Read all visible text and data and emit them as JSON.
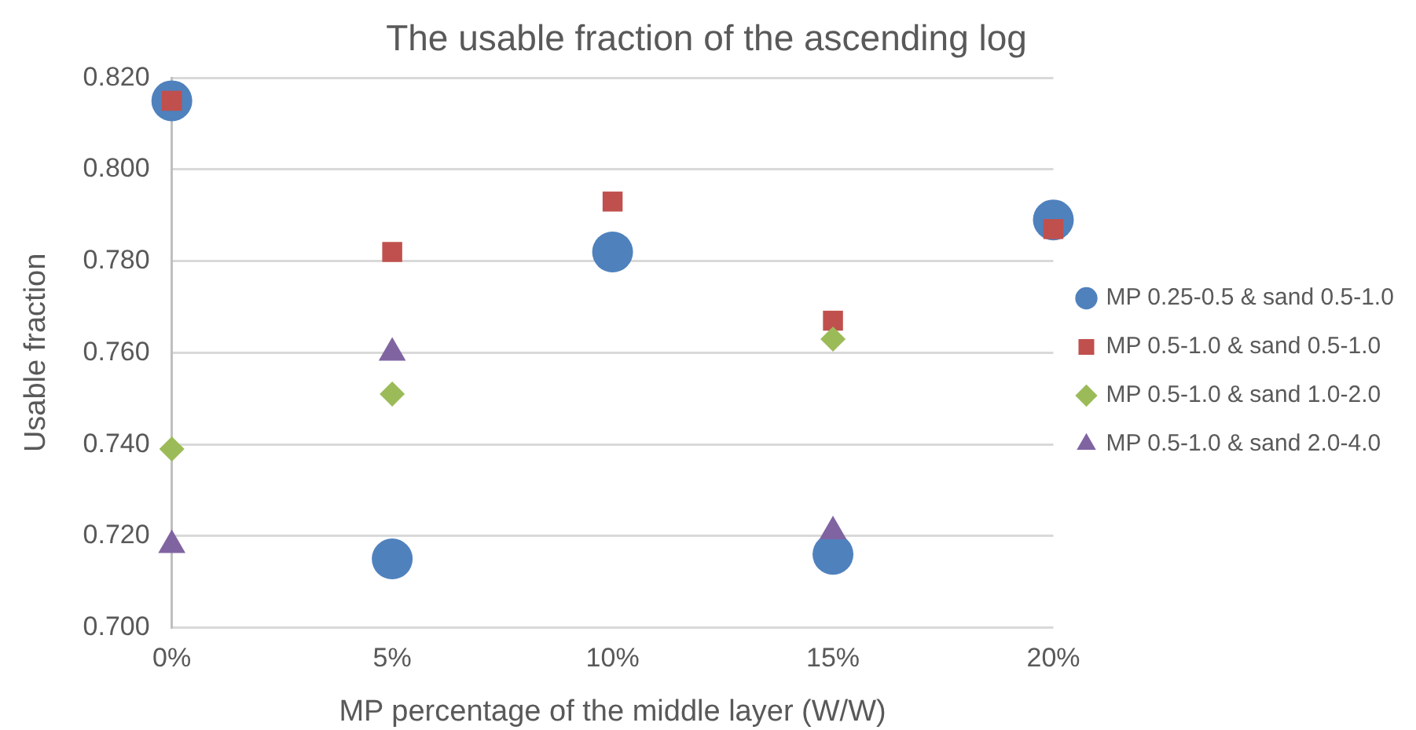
{
  "chart_data": {
    "type": "scatter",
    "title": "The usable fraction of the ascending log",
    "xlabel": "MP percentage of the middle layer (W/W)",
    "ylabel": "Usable fraction",
    "categories": [
      "0%",
      "5%",
      "10%",
      "15%",
      "20%"
    ],
    "series": [
      {
        "name": "MP 0.25-0.5 & sand 0.5-1.0",
        "color": "#4f81bd",
        "marker": "circle",
        "values": [
          0.815,
          0.715,
          0.782,
          0.716,
          0.789
        ]
      },
      {
        "name": "MP 0.5-1.0 & sand 0.5-1.0",
        "color": "#c0504d",
        "marker": "square",
        "values": [
          0.815,
          0.782,
          0.793,
          0.767,
          0.787
        ]
      },
      {
        "name": "MP 0.5-1.0 & sand 1.0-2.0",
        "color": "#9bbb59",
        "marker": "diamond",
        "values": [
          0.739,
          0.751,
          null,
          0.763,
          null
        ]
      },
      {
        "name": "MP 0.5-1.0 & sand 2.0-4.0",
        "color": "#8064a2",
        "marker": "triangle",
        "values": [
          0.718,
          0.76,
          null,
          0.721,
          null
        ]
      }
    ],
    "ylim": [
      0.7,
      0.82
    ],
    "yticks": [
      {
        "value": 0.7,
        "label": "0.700"
      },
      {
        "value": 0.72,
        "label": "0.720"
      },
      {
        "value": 0.74,
        "label": "0.740"
      },
      {
        "value": 0.76,
        "label": "0.760"
      },
      {
        "value": 0.78,
        "label": "0.780"
      },
      {
        "value": 0.8,
        "label": "0.800"
      },
      {
        "value": 0.82,
        "label": "0.820"
      }
    ],
    "grid": "y",
    "legend": "right"
  }
}
